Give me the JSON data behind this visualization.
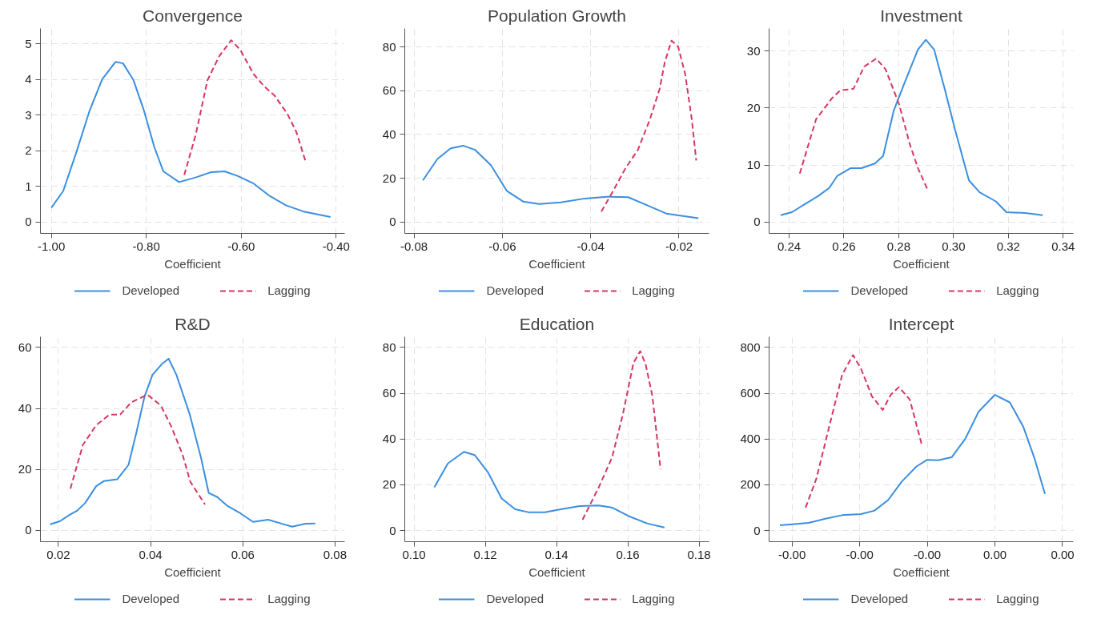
{
  "chart_data": [
    {
      "type": "line",
      "title": "Convergence",
      "xlabel": "Coefficient",
      "xlim": [
        -1.023,
        -0.382
      ],
      "ylim": [
        -0.32,
        5.43
      ],
      "xticks": [
        {
          "value": -1.0,
          "label": "-1.00"
        },
        {
          "value": -0.8,
          "label": "-0.80"
        },
        {
          "value": -0.6,
          "label": "-0.60"
        },
        {
          "value": -0.4,
          "label": "-0.40"
        }
      ],
      "yticks": [
        0,
        1,
        2,
        3,
        4,
        5
      ],
      "grid": true,
      "legend": "bottom",
      "series": [
        {
          "name": "Developed",
          "color": "#3a8fe0",
          "line_style": "solid",
          "x": [
            -1.0,
            -0.975,
            -0.948,
            -0.92,
            -0.893,
            -0.865,
            -0.849,
            -0.827,
            -0.805,
            -0.783,
            -0.764,
            -0.731,
            -0.696,
            -0.663,
            -0.635,
            -0.607,
            -0.574,
            -0.541,
            -0.506,
            -0.47,
            -0.412
          ],
          "values": [
            0.4,
            0.87,
            1.93,
            3.1,
            4.0,
            4.49,
            4.45,
            3.98,
            3.13,
            2.1,
            1.42,
            1.12,
            1.25,
            1.4,
            1.42,
            1.29,
            1.08,
            0.74,
            0.47,
            0.3,
            0.14
          ]
        },
        {
          "name": "Lagging",
          "color": "#d6365f",
          "line_style": "dashed",
          "x": [
            -0.72,
            -0.696,
            -0.671,
            -0.646,
            -0.621,
            -0.602,
            -0.574,
            -0.552,
            -0.53,
            -0.503,
            -0.484,
            -0.464
          ],
          "values": [
            1.32,
            2.44,
            3.98,
            4.66,
            5.1,
            4.83,
            4.15,
            3.81,
            3.55,
            3.04,
            2.53,
            1.68
          ]
        }
      ]
    },
    {
      "type": "line",
      "title": "Population Growth",
      "xlabel": "Coefficient",
      "xlim": [
        -0.0821,
        -0.0132
      ],
      "ylim": [
        -5.3,
        88.6
      ],
      "xticks": [
        -0.08,
        -0.06,
        -0.04,
        -0.02
      ],
      "yticks": [
        0,
        20,
        40,
        60,
        80
      ],
      "grid": true,
      "legend": "bottom",
      "series": [
        {
          "name": "Developed",
          "color": "#3a8fe0",
          "line_style": "solid",
          "x": [
            -0.078,
            -0.0747,
            -0.0717,
            -0.0689,
            -0.0662,
            -0.0626,
            -0.059,
            -0.0553,
            -0.0517,
            -0.0468,
            -0.0413,
            -0.0364,
            -0.0315,
            -0.0272,
            -0.0229,
            -0.0156
          ],
          "values": [
            19,
            28.8,
            33.7,
            34.9,
            33,
            26,
            14.2,
            9.3,
            8.2,
            8.9,
            10.7,
            11.5,
            11.3,
            7.6,
            3.8,
            1.7
          ]
        },
        {
          "name": "Lagging",
          "color": "#d6365f",
          "line_style": "dashed",
          "x": [
            -0.0376,
            -0.0351,
            -0.0321,
            -0.0293,
            -0.0266,
            -0.0244,
            -0.0232,
            -0.0217,
            -0.0202,
            -0.0186,
            -0.0171,
            -0.0161
          ],
          "values": [
            4.7,
            13.5,
            24.6,
            33,
            46.9,
            60.8,
            73.3,
            83,
            80.3,
            67.7,
            46.9,
            28.1
          ]
        }
      ]
    },
    {
      "type": "line",
      "title": "Investment",
      "xlabel": "Coefficient",
      "xlim": [
        0.2327,
        0.3437
      ],
      "ylim": [
        -2.03,
        34.0
      ],
      "xticks": [
        0.24,
        0.26,
        0.28,
        {
          "value": 0.3,
          "label": "0.30"
        },
        0.32,
        0.34
      ],
      "yticks": [
        0,
        10,
        20,
        30
      ],
      "grid": true,
      "legend": "bottom",
      "series": [
        {
          "name": "Developed",
          "color": "#3a8fe0",
          "line_style": "solid",
          "x": [
            0.2369,
            0.241,
            0.2459,
            0.2508,
            0.2547,
            0.2576,
            0.2625,
            0.2664,
            0.2713,
            0.2743,
            0.2782,
            0.2821,
            0.287,
            0.2899,
            0.2929,
            0.2968,
            0.3007,
            0.3056,
            0.3095,
            0.3154,
            0.3193,
            0.3261,
            0.3325
          ],
          "values": [
            1.17,
            1.7,
            3.15,
            4.6,
            6.0,
            8.1,
            9.45,
            9.45,
            10.25,
            11.6,
            19.6,
            24.4,
            30.3,
            32,
            30.3,
            23.3,
            15.9,
            7.3,
            5.2,
            3.6,
            1.7,
            1.55,
            1.17
          ]
        },
        {
          "name": "Lagging",
          "color": "#d6365f",
          "line_style": "dashed",
          "x": [
            0.2439,
            0.2498,
            0.2556,
            0.2586,
            0.2635,
            0.2674,
            0.2718,
            0.2752,
            0.2801,
            0.284,
            0.287,
            0.2904
          ],
          "values": [
            8.5,
            18,
            21.7,
            23.1,
            23.4,
            27.3,
            28.7,
            26.8,
            20.7,
            13.7,
            9.45,
            5.8
          ]
        }
      ]
    },
    {
      "type": "line",
      "title": "R&D",
      "xlabel": "Coefficient",
      "xlim": [
        0.0161,
        0.0821
      ],
      "ylim": [
        -3.7,
        63.5
      ],
      "xticks": [
        0.02,
        0.04,
        0.06,
        0.08
      ],
      "yticks": [
        0,
        20,
        40,
        60
      ],
      "grid": true,
      "legend": "bottom",
      "series": [
        {
          "name": "Developed",
          "color": "#3a8fe0",
          "line_style": "solid",
          "x": [
            0.0182,
            0.0203,
            0.0223,
            0.0241,
            0.0258,
            0.0282,
            0.0299,
            0.0328,
            0.0352,
            0.0369,
            0.0387,
            0.0404,
            0.0424,
            0.0439,
            0.0456,
            0.0485,
            0.0509,
            0.0526,
            0.0544,
            0.0567,
            0.0596,
            0.0622,
            0.0655,
            0.0678,
            0.0707,
            0.0736,
            0.0757
          ],
          "values": [
            2,
            3,
            5,
            6.5,
            9,
            14.5,
            16.2,
            16.8,
            21.5,
            32,
            44,
            51,
            54.5,
            56.3,
            51,
            38,
            24,
            12.3,
            11,
            8,
            5.5,
            2.8,
            3.5,
            2.5,
            1.2,
            2.2,
            2.3
          ]
        },
        {
          "name": "Lagging",
          "color": "#d6365f",
          "line_style": "dashed",
          "x": [
            0.0226,
            0.0253,
            0.0282,
            0.0311,
            0.0334,
            0.0358,
            0.0393,
            0.0422,
            0.0445,
            0.0469,
            0.0486,
            0.0518
          ],
          "values": [
            13.7,
            28,
            34.5,
            38,
            38,
            42,
            44.5,
            41,
            34,
            25,
            16,
            8.5
          ]
        }
      ]
    },
    {
      "type": "line",
      "title": "Education",
      "xlabel": "Coefficient",
      "xlim": [
        0.0974,
        0.1828
      ],
      "ylim": [
        -4.9,
        84.7
      ],
      "xticks": [
        {
          "value": 0.1,
          "label": "0.10"
        },
        0.12,
        0.14,
        0.16,
        0.18
      ],
      "yticks": [
        0,
        20,
        40,
        60,
        80
      ],
      "grid": true,
      "legend": "bottom",
      "series": [
        {
          "name": "Developed",
          "color": "#3a8fe0",
          "line_style": "solid",
          "x": [
            0.1057,
            0.1095,
            0.114,
            0.117,
            0.1208,
            0.1246,
            0.1284,
            0.1321,
            0.1367,
            0.1412,
            0.1465,
            0.1518,
            0.1556,
            0.1601,
            0.1654,
            0.1703
          ],
          "values": [
            18.9,
            29.3,
            34.4,
            33,
            25.3,
            14,
            9.3,
            8,
            8,
            9.3,
            10.7,
            10.9,
            10,
            6.4,
            3.1,
            1.3
          ]
        },
        {
          "name": "Lagging",
          "color": "#d6365f",
          "line_style": "dashed",
          "x": [
            0.1473,
            0.1518,
            0.1556,
            0.1586,
            0.1616,
            0.1635,
            0.165,
            0.1669,
            0.1692
          ],
          "values": [
            4.7,
            18.7,
            32,
            50.7,
            73.3,
            78.4,
            72.7,
            58.7,
            26.7
          ]
        }
      ]
    },
    {
      "type": "line",
      "title": "Intercept",
      "xlabel": "Coefficient",
      "xlim": [
        -0.00167,
        0.00058
      ],
      "ylim": [
        -49,
        847
      ],
      "xticks": [
        {
          "value": -0.0015,
          "label": "-0.00"
        },
        {
          "value": -0.001,
          "label": "-0.00"
        },
        {
          "value": -0.0005,
          "label": "-0.00"
        },
        {
          "value": 0.0,
          "label": "0.00"
        },
        {
          "value": 0.0005,
          "label": "0.00"
        }
      ],
      "yticks": [
        0,
        200,
        400,
        600,
        800
      ],
      "grid": true,
      "legend": "bottom",
      "series": [
        {
          "name": "Developed",
          "color": "#3a8fe0",
          "line_style": "solid",
          "x": [
            -0.00159,
            -0.0015,
            -0.00138,
            -0.00126,
            -0.00113,
            -0.00099,
            -0.00089,
            -0.00079,
            -0.00069,
            -0.00058,
            -0.0005,
            -0.00042,
            -0.00032,
            -0.00022,
            -0.00012,
            0.0,
            0.00011,
            0.00021,
            0.00029,
            0.00037
          ],
          "values": [
            23,
            27,
            33,
            51,
            67,
            72,
            87,
            133,
            213,
            280,
            309,
            307,
            320,
            400,
            520,
            593,
            560,
            453,
            320,
            160
          ]
        },
        {
          "name": "Lagging",
          "color": "#d6365f",
          "line_style": "dashed",
          "x": [
            -0.0014,
            -0.00132,
            -0.00122,
            -0.00113,
            -0.00105,
            -0.00099,
            -0.00091,
            -0.00083,
            -0.00077,
            -0.00071,
            -0.00063,
            -0.00054
          ],
          "values": [
            100,
            227,
            467,
            680,
            767,
            707,
            587,
            527,
            593,
            627,
            573,
            373
          ]
        }
      ]
    }
  ]
}
